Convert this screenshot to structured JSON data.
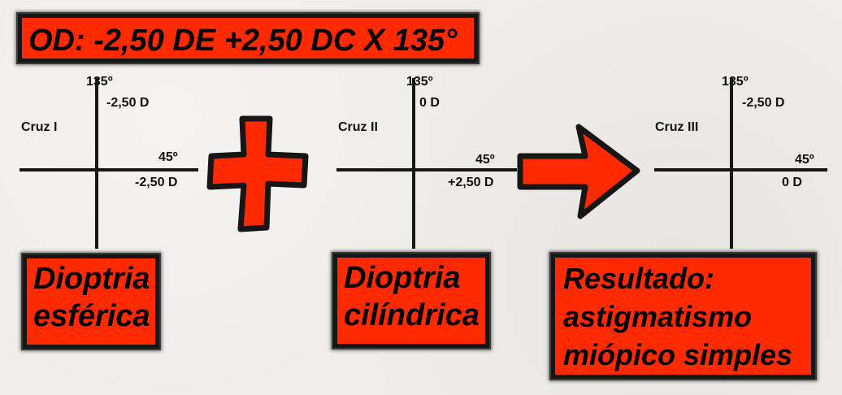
{
  "title": "OD: -2,50 DE +2,50 DC X 135°",
  "crosses": [
    {
      "name": "Cruz I",
      "label_135": "135º",
      "power_135": "-2,50 D",
      "label_45": "45º",
      "power_45": "-2,50 D"
    },
    {
      "name": "Cruz II",
      "label_135": "135º",
      "power_135": "0 D",
      "label_45": "45º",
      "power_45": "+2,50 D"
    },
    {
      "name": "Cruz III",
      "label_135": "135º",
      "power_135": "-2,50 D",
      "label_45": "45º",
      "power_45": "0 D"
    }
  ],
  "boxes": [
    {
      "line1": "Dioptria",
      "line2": "esférica"
    },
    {
      "line1": "Dioptria",
      "line2": "cilíndrica"
    },
    {
      "line1": "Resultado:",
      "line2": "astigmatismo",
      "line3": "miópico simples"
    }
  ],
  "colors": {
    "accent": "#ff2a00",
    "ink": "#161616",
    "background": "#efedea"
  },
  "icons": [
    "plus-icon",
    "arrow-right-icon"
  ]
}
